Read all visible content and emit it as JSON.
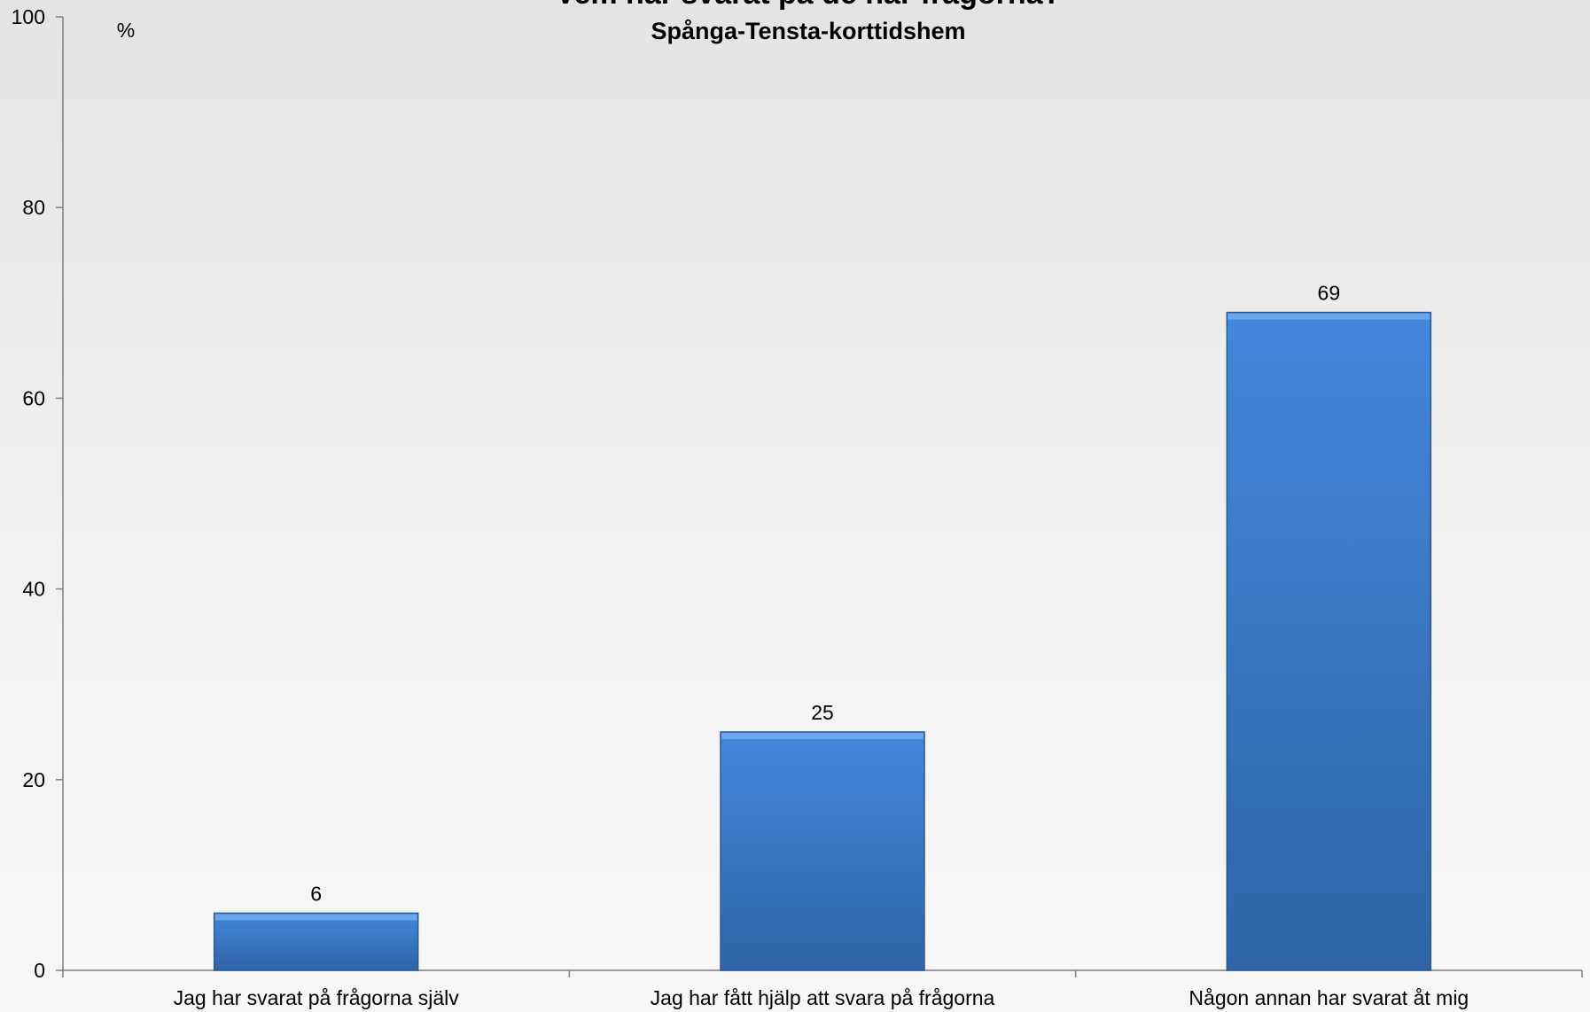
{
  "chart_data": {
    "type": "bar",
    "title": "Vem har svarat på de här frågorna?",
    "subtitle": "Spånga-Tensta-korttidshem",
    "ylabel": "%",
    "categories": [
      "Jag har svarat på frågorna själv",
      "Jag har fått hjälp att svara på frågorna",
      "Någon annan har svarat åt mig"
    ],
    "values": [
      6,
      25,
      69
    ],
    "ylim": [
      0,
      100
    ],
    "yticks": [
      0,
      20,
      40,
      60,
      80,
      100
    ],
    "grid": false,
    "bar_color": "#3b7dcf"
  }
}
